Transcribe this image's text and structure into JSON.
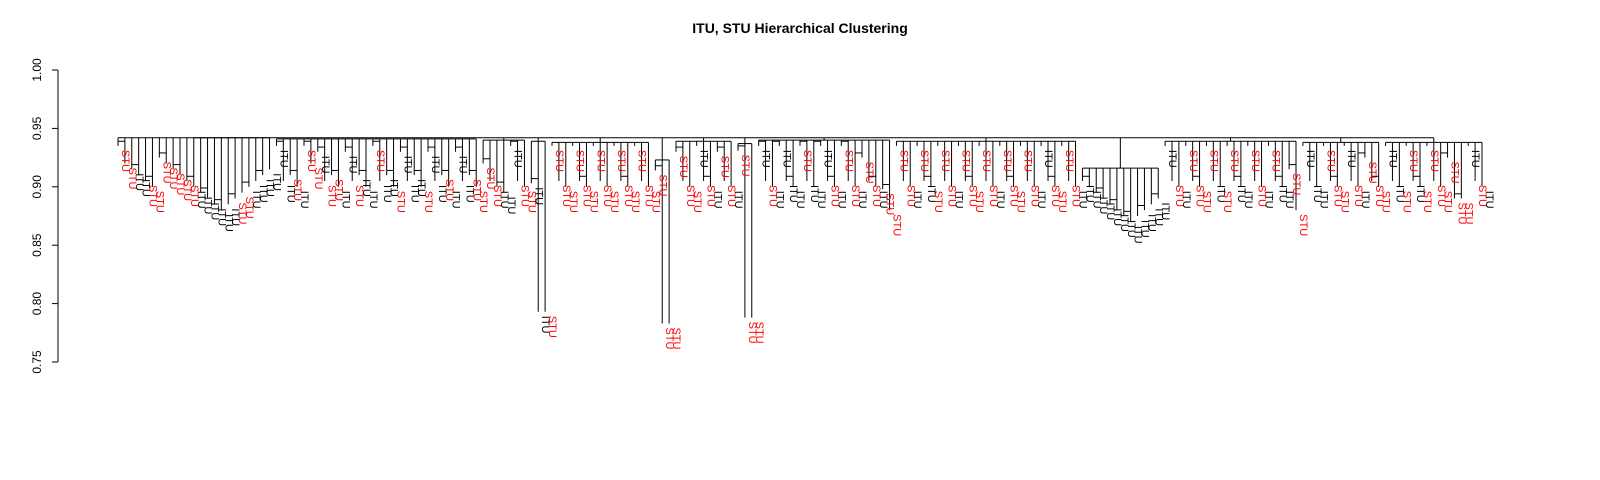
{
  "chart_data": {
    "type": "dendrogram",
    "title": "ITU, STU Hierarchical Clustering",
    "xlabel": "",
    "ylabel": "",
    "ylim": [
      0.75,
      1.0
    ],
    "yticks": [
      0.75,
      0.8,
      0.85,
      0.9,
      0.95,
      1.0
    ],
    "ytick_labels": [
      "0.75",
      "0.80",
      "0.85",
      "0.90",
      "0.95",
      "1.00"
    ],
    "categories_legend": {
      "ITU": "#000000",
      "STU": "#ff0000"
    },
    "root_height": 0.942,
    "clusters": [
      {
        "group": 1,
        "merge_height": 0.942,
        "leaf_heights": [
          0.935,
          0.92,
          0.915,
          0.91,
          0.905,
          0.9,
          0.925,
          0.92,
          0.915,
          0.91,
          0.905,
          0.9,
          0.895,
          0.89,
          0.885,
          0.88,
          0.885,
          0.89,
          0.895,
          0.9,
          0.905,
          0.91,
          0.915
        ],
        "leaf_labels": [
          "STU",
          "STU",
          "ITU",
          "ITU",
          "STU",
          "STU",
          "STU",
          "STU",
          "STU",
          "STU",
          "STU",
          "ITU",
          "ITU",
          "ITU",
          "ITU",
          "ITU",
          "ITU",
          "STU",
          "STU",
          "ITU",
          "ITU",
          "ITU",
          "ITU"
        ]
      },
      {
        "group": 2,
        "merge_height": 0.941,
        "leaf_heights": [
          0.935,
          0.905,
          0.91,
          0.9,
          0.935,
          0.92,
          0.93,
          0.905,
          0.91,
          0.9,
          0.93,
          0.905,
          0.91,
          0.9,
          0.935,
          0.905,
          0.91,
          0.9,
          0.93,
          0.905,
          0.91,
          0.9,
          0.93,
          0.905,
          0.91,
          0.9,
          0.93,
          0.905,
          0.91,
          0.9
        ],
        "leaf_labels": [
          "ITU",
          "ITU",
          "STU",
          "ITU",
          "STU",
          "STU",
          "ITU",
          "STU",
          "STU",
          "ITU",
          "ITU",
          "STU",
          "ITU",
          "ITU",
          "STU",
          "ITU",
          "ITU",
          "STU",
          "ITU",
          "ITU",
          "ITU",
          "STU",
          "ITU",
          "ITU",
          "STU",
          "ITU",
          "ITU",
          "ITU",
          "STU",
          "STU"
        ]
      },
      {
        "group": 3,
        "merge_height": 0.94,
        "leaf_heights": [
          0.92,
          0.905,
          0.9,
          0.895,
          0.935,
          0.905,
          0.9
        ],
        "leaf_labels": [
          "STU",
          "STU",
          "ITU",
          "ITU",
          "ITU",
          "STU",
          "STU"
        ]
      },
      {
        "group": 4,
        "merge_height": 0.939,
        "leaf_heights": [
          0.903,
          0.793,
          0.793
        ],
        "leaf_labels": [
          "ITU",
          "ITU",
          "STU"
        ]
      },
      {
        "group": 5,
        "merge_height": 0.938,
        "leaf_heights": [
          0.935,
          0.905,
          0.9,
          0.935,
          0.905,
          0.9,
          0.935,
          0.905,
          0.9,
          0.935,
          0.905,
          0.9,
          0.935,
          0.905,
          0.9
        ],
        "leaf_labels": [
          "STU",
          "STU",
          "STU",
          "STU",
          "STU",
          "STU",
          "STU",
          "STU",
          "STU",
          "STU",
          "STU",
          "STU",
          "STU",
          "STU",
          "STU"
        ]
      },
      {
        "group": 6,
        "merge_height": 0.923,
        "leaf_heights": [
          0.914,
          0.783,
          0.783
        ],
        "leaf_labels": [
          "STU",
          "STU",
          "STU"
        ]
      },
      {
        "group": 7,
        "merge_height": 0.939,
        "leaf_heights": [
          0.93,
          0.905,
          0.9,
          0.935,
          0.905,
          0.9,
          0.93,
          0.905,
          0.9
        ],
        "leaf_labels": [
          "STU",
          "STU",
          "STU",
          "ITU",
          "STU",
          "ITU",
          "STU",
          "STU",
          "ITU"
        ]
      },
      {
        "group": 8,
        "merge_height": 0.937,
        "leaf_heights": [
          0.931,
          0.788,
          0.788
        ],
        "leaf_labels": [
          "STU",
          "STU",
          "STU"
        ]
      },
      {
        "group": 9,
        "merge_height": 0.94,
        "leaf_heights": [
          0.935,
          0.905,
          0.9,
          0.935,
          0.905,
          0.9,
          0.935,
          0.905,
          0.9,
          0.935,
          0.905,
          0.9,
          0.935,
          0.905,
          0.9,
          0.925,
          0.905,
          0.9,
          0.898,
          0.88
        ],
        "leaf_labels": [
          "ITU",
          "STU",
          "ITU",
          "ITU",
          "ITU",
          "ITU",
          "STU",
          "ITU",
          "ITU",
          "ITU",
          "STU",
          "ITU",
          "STU",
          "STU",
          "ITU",
          "STU",
          "STU",
          "ITU",
          "STU",
          "STU"
        ]
      },
      {
        "group": 10,
        "merge_height": 0.939,
        "leaf_heights": [
          0.935,
          0.905,
          0.9,
          0.935,
          0.905,
          0.9,
          0.935,
          0.905,
          0.9,
          0.935,
          0.905,
          0.9,
          0.935,
          0.905,
          0.9,
          0.935,
          0.905,
          0.9,
          0.935,
          0.905,
          0.9,
          0.935,
          0.905,
          0.9,
          0.935,
          0.905,
          0.9
        ],
        "leaf_labels": [
          "STU",
          "STU",
          "ITU",
          "STU",
          "ITU",
          "STU",
          "STU",
          "STU",
          "ITU",
          "STU",
          "STU",
          "STU",
          "STU",
          "STU",
          "ITU",
          "STU",
          "STU",
          "STU",
          "STU",
          "STU",
          "ITU",
          "ITU",
          "STU",
          "STU",
          "STU",
          "STU",
          "ITU"
        ]
      },
      {
        "group": 11,
        "merge_height": 0.916,
        "leaf_heights": [
          0.905,
          0.9,
          0.895,
          0.89,
          0.885,
          0.88,
          0.875,
          0.87,
          0.875,
          0.88,
          0.885,
          0.89
        ],
        "leaf_labels": [
          "ITU",
          "ITU",
          "ITU",
          "ITU",
          "ITU",
          "ITU",
          "ITU",
          "ITU",
          "ITU",
          "ITU",
          "ITU",
          "ITU"
        ]
      },
      {
        "group": 12,
        "merge_height": 0.939,
        "leaf_heights": [
          0.935,
          0.905,
          0.9,
          0.935,
          0.905,
          0.9,
          0.935,
          0.905,
          0.9,
          0.935,
          0.905,
          0.9,
          0.935,
          0.905,
          0.9,
          0.935,
          0.905,
          0.9,
          0.915,
          0.88
        ],
        "leaf_labels": [
          "ITU",
          "STU",
          "ITU",
          "STU",
          "STU",
          "STU",
          "STU",
          "ITU",
          "STU",
          "STU",
          "ITU",
          "ITU",
          "STU",
          "STU",
          "ITU",
          "STU",
          "ITU",
          "ITU",
          "STU",
          "STU"
        ]
      },
      {
        "group": 13,
        "merge_height": 0.938,
        "leaf_heights": [
          0.935,
          0.905,
          0.9,
          0.935,
          0.905,
          0.9,
          0.935,
          0.905,
          0.9,
          0.925,
          0.905,
          0.9
        ],
        "leaf_labels": [
          "ITU",
          "ITU",
          "ITU",
          "STU",
          "STU",
          "STU",
          "ITU",
          "STU",
          "ITU",
          "STU",
          "STU",
          "STU"
        ]
      },
      {
        "group": 14,
        "merge_height": 0.938,
        "leaf_heights": [
          0.935,
          0.905,
          0.9,
          0.935,
          0.905,
          0.9,
          0.935,
          0.905,
          0.9,
          0.925,
          0.89,
          0.89,
          0.935,
          0.905,
          0.9
        ],
        "leaf_labels": [
          "ITU",
          "ITU",
          "STU",
          "STU",
          "ITU",
          "STU",
          "STU",
          "STU",
          "STU",
          "STU",
          "STU",
          "STU",
          "ITU",
          "STU",
          "ITU"
        ]
      }
    ]
  }
}
